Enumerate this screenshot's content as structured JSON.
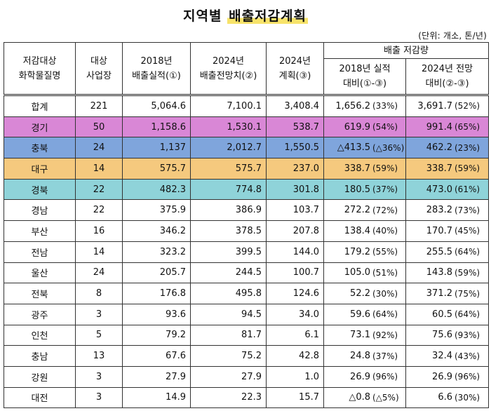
{
  "title_part1": "지역별",
  "title_part2": "배출저감계획",
  "unit_note": "(단위: 개소, 톤/년)",
  "headers": {
    "col1_line1": "저감대상",
    "col1_line2": "화학물질명",
    "col2_line1": "대상",
    "col2_line2": "사업장",
    "col3_line1": "2018년",
    "col3_line2": "배출실적(①)",
    "col4_line1": "2024년",
    "col4_line2": "배출전망치(②)",
    "col5_line1": "2024년",
    "col5_line2": "계획(③)",
    "group": "배출 저감량",
    "col6_line1": "2018년 실적",
    "col6_line2": "대비(①-③)",
    "col7_line1": "2024년 전망",
    "col7_line2": "대비(②-③)"
  },
  "rows": [
    {
      "region": "합계",
      "count": "221",
      "y2018": "5,064.6",
      "proj2024": "7,100.1",
      "plan2024": "3,408.4",
      "red18": "1,656.2",
      "red18_pct": "(33%)",
      "red24": "3,691.7",
      "red24_pct": "(52%)"
    },
    {
      "region": "경기",
      "count": "50",
      "y2018": "1,158.6",
      "proj2024": "1,530.1",
      "plan2024": "538.7",
      "red18": "619.9",
      "red18_pct": "(54%)",
      "red24": "991.4",
      "red24_pct": "(65%)"
    },
    {
      "region": "충북",
      "count": "24",
      "y2018": "1,137",
      "proj2024": "2,012.7",
      "plan2024": "1,550.5",
      "red18": "△413.5",
      "red18_pct": "(△36%)",
      "red24": "462.2",
      "red24_pct": "(23%)"
    },
    {
      "region": "대구",
      "count": "14",
      "y2018": "575.7",
      "proj2024": "575.7",
      "plan2024": "237.0",
      "red18": "338.7",
      "red18_pct": "(59%)",
      "red24": "338.7",
      "red24_pct": "(59%)"
    },
    {
      "region": "경북",
      "count": "22",
      "y2018": "482.3",
      "proj2024": "774.8",
      "plan2024": "301.8",
      "red18": "180.5",
      "red18_pct": "(37%)",
      "red24": "473.0",
      "red24_pct": "(61%)"
    },
    {
      "region": "경남",
      "count": "22",
      "y2018": "375.9",
      "proj2024": "386.9",
      "plan2024": "103.7",
      "red18": "272.2",
      "red18_pct": "(72%)",
      "red24": "283.2",
      "red24_pct": "(73%)"
    },
    {
      "region": "부산",
      "count": "16",
      "y2018": "346.2",
      "proj2024": "378.5",
      "plan2024": "207.8",
      "red18": "138.4",
      "red18_pct": "(40%)",
      "red24": "170.7",
      "red24_pct": "(45%)"
    },
    {
      "region": "전남",
      "count": "14",
      "y2018": "323.2",
      "proj2024": "399.5",
      "plan2024": "144.0",
      "red18": "179.2",
      "red18_pct": "(55%)",
      "red24": "255.5",
      "red24_pct": "(64%)"
    },
    {
      "region": "울산",
      "count": "24",
      "y2018": "205.7",
      "proj2024": "244.5",
      "plan2024": "100.7",
      "red18": "105.0",
      "red18_pct": "(51%)",
      "red24": "143.8",
      "red24_pct": "(59%)"
    },
    {
      "region": "전북",
      "count": "8",
      "y2018": "176.8",
      "proj2024": "495.8",
      "plan2024": "124.6",
      "red18": "52.2",
      "red18_pct": "(30%)",
      "red24": "371.2",
      "red24_pct": "(75%)"
    },
    {
      "region": "광주",
      "count": "3",
      "y2018": "93.6",
      "proj2024": "94.5",
      "plan2024": "34.0",
      "red18": "59.6",
      "red18_pct": "(64%)",
      "red24": "60.5",
      "red24_pct": "(64%)"
    },
    {
      "region": "인천",
      "count": "5",
      "y2018": "79.2",
      "proj2024": "81.7",
      "plan2024": "6.1",
      "red18": "73.1",
      "red18_pct": "(92%)",
      "red24": "75.6",
      "red24_pct": "(93%)"
    },
    {
      "region": "충남",
      "count": "13",
      "y2018": "67.6",
      "proj2024": "75.2",
      "plan2024": "42.8",
      "red18": "24.8",
      "red18_pct": "(37%)",
      "red24": "32.4",
      "red24_pct": "(43%)"
    },
    {
      "region": "강원",
      "count": "3",
      "y2018": "27.9",
      "proj2024": "27.9",
      "plan2024": "1.0",
      "red18": "26.9",
      "red18_pct": "(96%)",
      "red24": "26.9",
      "red24_pct": "(96%)"
    },
    {
      "region": "대전",
      "count": "3",
      "y2018": "14.9",
      "proj2024": "22.3",
      "plan2024": "15.7",
      "red18": "△0.8",
      "red18_pct": "(△5%)",
      "red24": "6.6",
      "red24_pct": "(30%)"
    }
  ],
  "colors": {
    "gyeonggi": "#d987d6",
    "chungbuk": "#7fa5dc",
    "daegu": "#f5c97e",
    "gyeongbuk": "#8fd3d9",
    "title_highlight": "#f7e36a"
  }
}
